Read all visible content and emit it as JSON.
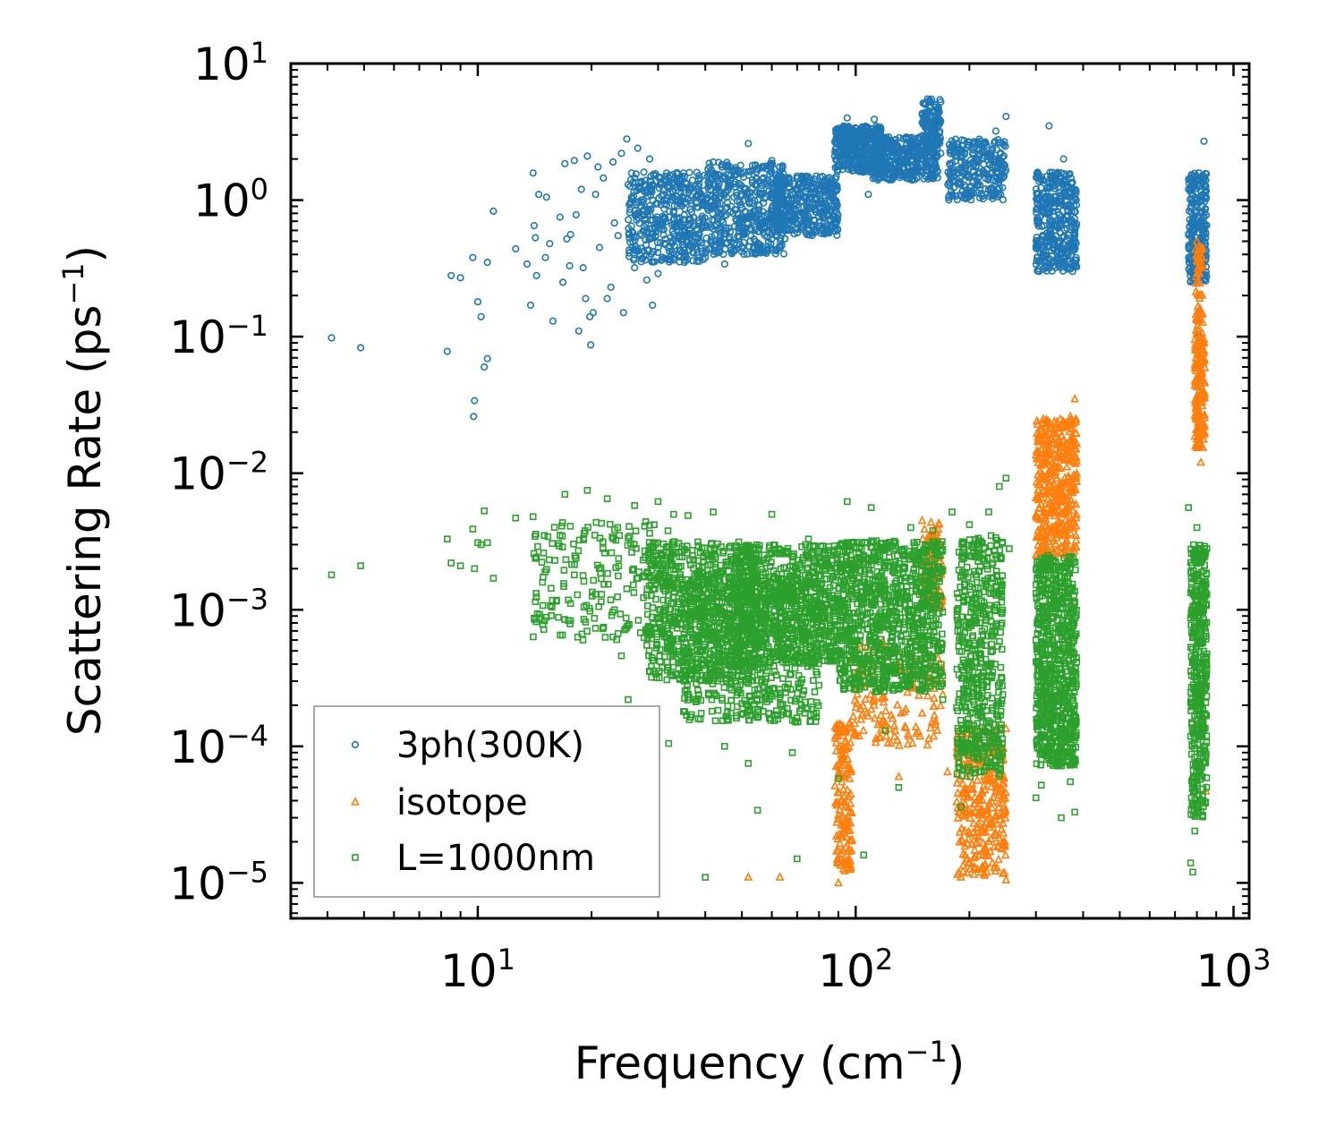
{
  "chart_data": {
    "type": "scatter",
    "xscale": "log",
    "yscale": "log",
    "xlim": [
      3.2,
      1100
    ],
    "ylim": [
      5.5e-06,
      10
    ],
    "xlabel": {
      "base": "Frequency (cm",
      "sup": "−1",
      "tail": ")"
    },
    "ylabel": {
      "base": "Scattering Rate (ps",
      "sup": "−1",
      "tail": ")"
    },
    "x_ticks": [
      {
        "value": 10,
        "base": "10",
        "exp": "1"
      },
      {
        "value": 100,
        "base": "10",
        "exp": "2"
      },
      {
        "value": 1000,
        "base": "10",
        "exp": "3"
      }
    ],
    "y_ticks": [
      {
        "value": 10,
        "base": "10",
        "exp": "1"
      },
      {
        "value": 1,
        "base": "10",
        "exp": "0"
      },
      {
        "value": 0.1,
        "base": "10",
        "exp": "−1"
      },
      {
        "value": 0.01,
        "base": "10",
        "exp": "−2"
      },
      {
        "value": 0.001,
        "base": "10",
        "exp": "−3"
      },
      {
        "value": 0.0001,
        "base": "10",
        "exp": "−4"
      },
      {
        "value": 1e-05,
        "base": "10",
        "exp": "−5"
      }
    ],
    "legend": {
      "placement": "lower-left"
    },
    "series": [
      {
        "name": "3ph(300K)",
        "marker": "circle",
        "color": "#1f77b4",
        "points": [
          [
            4.1,
            0.098
          ],
          [
            4.9,
            0.083
          ],
          [
            8.3,
            0.078
          ],
          [
            8.5,
            0.28
          ],
          [
            9.0,
            0.27
          ],
          [
            9.7,
            0.38
          ],
          [
            9.8,
            0.034
          ],
          [
            9.75,
            0.026
          ],
          [
            10.0,
            0.18
          ],
          [
            10.2,
            0.14
          ],
          [
            10.4,
            0.06
          ],
          [
            10.6,
            0.069
          ],
          [
            10.6,
            0.35
          ],
          [
            11.0,
            0.83
          ],
          [
            12.6,
            0.44
          ],
          [
            13.5,
            0.34
          ],
          [
            13.8,
            0.17
          ],
          [
            14.0,
            1.58
          ],
          [
            14.1,
            0.65
          ],
          [
            14.2,
            0.53
          ],
          [
            14.3,
            0.28
          ],
          [
            14.5,
            1.1
          ],
          [
            15.1,
            0.38
          ],
          [
            15.2,
            1.05
          ],
          [
            15.5,
            0.48
          ],
          [
            15.8,
            0.13
          ],
          [
            16.5,
            0.75
          ],
          [
            16.8,
            0.25
          ],
          [
            17.0,
            1.85
          ],
          [
            17.2,
            0.52
          ],
          [
            17.5,
            0.33
          ],
          [
            17.6,
            0.56
          ],
          [
            18.0,
            1.95
          ],
          [
            18.2,
            0.78
          ],
          [
            18.5,
            0.11
          ],
          [
            18.8,
            1.2
          ],
          [
            19.0,
            0.32
          ],
          [
            19.3,
            0.19
          ],
          [
            19.5,
            2.1
          ],
          [
            19.8,
            0.14
          ],
          [
            19.9,
            0.087
          ],
          [
            20.2,
            0.15
          ],
          [
            20.5,
            1.1
          ],
          [
            20.8,
            1.75
          ],
          [
            21.0,
            0.45
          ],
          [
            21.5,
            1.45
          ],
          [
            22.0,
            0.19
          ],
          [
            22.5,
            0.23
          ],
          [
            22.8,
            1.9
          ],
          [
            23.0,
            0.68
          ],
          [
            23.5,
            0.55
          ],
          [
            24.0,
            2.2
          ],
          [
            24.3,
            0.15
          ],
          [
            24.8,
            2.8
          ],
          [
            25.0,
            1.3
          ],
          [
            25.5,
            1.05
          ],
          [
            26.0,
            0.32
          ],
          [
            26.5,
            2.4
          ],
          [
            27.0,
            0.9
          ],
          [
            27.5,
            1.6
          ],
          [
            28.0,
            0.26
          ],
          [
            28.5,
            2.0
          ],
          [
            29.0,
            0.17
          ],
          [
            29.5,
            0.55
          ],
          [
            30.0,
            0.29
          ],
          [
            31.0,
            1.1
          ],
          [
            33.0,
            0.72
          ],
          [
            35.0,
            0.45
          ],
          [
            37.0,
            1.4
          ],
          [
            40.0,
            0.38
          ],
          [
            42.0,
            1.9
          ],
          [
            45.0,
            0.34
          ],
          [
            48.0,
            1.25
          ],
          [
            52.0,
            2.6
          ],
          [
            55.0,
            0.45
          ],
          [
            60.0,
            1.95
          ],
          [
            65.0,
            0.52
          ],
          [
            70.0,
            1.5
          ],
          [
            75.0,
            0.62
          ],
          [
            80.0,
            0.95
          ],
          [
            88.0,
            2.1
          ],
          [
            95.0,
            4.0
          ],
          [
            100.0,
            2.4
          ],
          [
            108.0,
            1.1
          ],
          [
            112.0,
            3.9
          ],
          [
            120.0,
            1.75
          ],
          [
            130.0,
            2.4
          ],
          [
            140.0,
            1.6
          ],
          [
            150.0,
            2.3
          ],
          [
            155.0,
            5.5
          ],
          [
            160.0,
            3.1
          ],
          [
            168.0,
            2.2
          ],
          [
            178.0,
            1.8
          ],
          [
            185.0,
            2.6
          ],
          [
            195.0,
            1.25
          ],
          [
            205.0,
            1.6
          ],
          [
            215.0,
            1.1
          ],
          [
            225.0,
            2.2
          ],
          [
            235.0,
            3.2
          ],
          [
            245.0,
            2.6
          ],
          [
            250.0,
            4.1
          ],
          [
            305.0,
            1.0
          ],
          [
            315.0,
            0.65
          ],
          [
            325.0,
            3.5
          ],
          [
            335.0,
            0.9
          ],
          [
            345.0,
            0.5
          ],
          [
            355.0,
            2.0
          ],
          [
            365.0,
            0.4
          ],
          [
            375.0,
            0.3
          ],
          [
            380.0,
            0.55
          ],
          [
            760.0,
            1.2
          ],
          [
            775.0,
            0.6
          ],
          [
            790.0,
            0.28
          ],
          [
            800.0,
            0.25
          ],
          [
            812.0,
            0.1
          ],
          [
            825.0,
            1.0
          ],
          [
            835.0,
            2.7
          ],
          [
            845.0,
            1.4
          ]
        ],
        "bands": [
          {
            "x": [
              25,
              40
            ],
            "y": [
              0.35,
              1.6
            ],
            "n": 420
          },
          {
            "x": [
              40,
              65
            ],
            "y": [
              0.4,
              1.9
            ],
            "n": 480
          },
          {
            "x": [
              60,
              90
            ],
            "y": [
              0.55,
              1.5
            ],
            "n": 380
          },
          {
            "x": [
              88,
              118
            ],
            "y": [
              1.6,
              3.5
            ],
            "n": 360
          },
          {
            "x": [
              110,
              165
            ],
            "y": [
              1.4,
              2.9
            ],
            "n": 420
          },
          {
            "x": [
              150,
              168
            ],
            "y": [
              2.5,
              5.5
            ],
            "n": 120
          },
          {
            "x": [
              175,
              250
            ],
            "y": [
              1.0,
              2.8
            ],
            "n": 260
          },
          {
            "x": [
              300,
              385
            ],
            "y": [
              0.3,
              1.6
            ],
            "n": 380
          },
          {
            "x": [
              760,
              850
            ],
            "y": [
              0.25,
              1.6
            ],
            "n": 240
          }
        ]
      },
      {
        "name": "isotope",
        "marker": "triangle",
        "color": "#ff7f0e",
        "points": [
          [
            52.0,
            1.1e-05
          ],
          [
            63.0,
            1.1e-05
          ],
          [
            90.0,
            1e-05
          ],
          [
            95.0,
            2.5e-05
          ],
          [
            100.0,
            0.00012
          ],
          [
            110.0,
            0.0003
          ],
          [
            130.0,
            6e-05
          ],
          [
            150.0,
            0.0045
          ],
          [
            160.0,
            0.0027
          ],
          [
            170.0,
            0.00024
          ],
          [
            175.0,
            6.5e-05
          ],
          [
            190.0,
            1.1e-05
          ],
          [
            230.0,
            1.4e-05
          ],
          [
            250.0,
            1.05e-05
          ],
          [
            300.0,
            0.0025
          ],
          [
            310.0,
            0.004
          ],
          [
            340.0,
            0.022
          ],
          [
            370.0,
            0.026
          ],
          [
            380.0,
            0.035
          ],
          [
            800.0,
            0.5
          ],
          [
            810.0,
            0.2
          ],
          [
            820.0,
            0.012
          ],
          [
            845.0,
            4.7e-05
          ]
        ],
        "bands": [
          {
            "x": [
              88,
              98
            ],
            "y": [
              1.2e-05,
              0.00015
            ],
            "n": 150
          },
          {
            "x": [
              98,
              170
            ],
            "y": [
              0.0001,
              0.0006
            ],
            "n": 160
          },
          {
            "x": [
              150,
              170
            ],
            "y": [
              0.001,
              0.0045
            ],
            "n": 110
          },
          {
            "x": [
              185,
              250
            ],
            "y": [
              1.1e-05,
              0.00014
            ],
            "n": 300
          },
          {
            "x": [
              300,
              385
            ],
            "y": [
              0.0025,
              0.025
            ],
            "n": 420
          },
          {
            "x": [
              790,
              840
            ],
            "y": [
              0.015,
              0.1
            ],
            "n": 170
          },
          {
            "x": [
              795,
              830
            ],
            "y": [
              0.1,
              0.45
            ],
            "n": 60
          }
        ]
      },
      {
        "name": "L=1000nm",
        "marker": "square",
        "color": "#2ca02c",
        "points": [
          [
            4.1,
            0.0018
          ],
          [
            4.9,
            0.0021
          ],
          [
            8.3,
            0.0033
          ],
          [
            8.5,
            0.0022
          ],
          [
            9.0,
            0.0021
          ],
          [
            9.7,
            0.0039
          ],
          [
            9.8,
            0.002
          ],
          [
            10.0,
            0.0031
          ],
          [
            10.2,
            0.003
          ],
          [
            10.4,
            0.0053
          ],
          [
            10.6,
            0.0031
          ],
          [
            11.0,
            0.0017
          ],
          [
            12.6,
            0.0047
          ],
          [
            14.0,
            0.0048
          ],
          [
            15.0,
            0.0035
          ],
          [
            16.0,
            0.0023
          ],
          [
            17.0,
            0.007
          ],
          [
            18.0,
            0.0018
          ],
          [
            19.5,
            0.0075
          ],
          [
            20.5,
            0.0013
          ],
          [
            22.0,
            0.0065
          ],
          [
            23.0,
            0.001
          ],
          [
            24.0,
            0.00046
          ],
          [
            25.0,
            0.00022
          ],
          [
            26.0,
            0.0058
          ],
          [
            28.0,
            0.00055
          ],
          [
            30.0,
            0.0062
          ],
          [
            32.0,
            0.000105
          ],
          [
            33.0,
            0.005
          ],
          [
            36.0,
            0.0049
          ],
          [
            40.0,
            1.1e-05
          ],
          [
            42.0,
            0.0052
          ],
          [
            45.0,
            0.0001
          ],
          [
            48.0,
            0.0003
          ],
          [
            52.0,
            7.5e-05
          ],
          [
            55.0,
            3.4e-05
          ],
          [
            60.0,
            0.005
          ],
          [
            68.0,
            9e-05
          ],
          [
            70.0,
            1.5e-05
          ],
          [
            75.0,
            0.0033
          ],
          [
            80.0,
            0.00028
          ],
          [
            90.0,
            5.8e-05
          ],
          [
            95.0,
            0.0062
          ],
          [
            100.0,
            0.00026
          ],
          [
            105.0,
            1.6e-05
          ],
          [
            110.0,
            0.0056
          ],
          [
            120.0,
            0.00013
          ],
          [
            130.0,
            5e-05
          ],
          [
            140.0,
            0.004
          ],
          [
            150.0,
            0.0003
          ],
          [
            160.0,
            0.0038
          ],
          [
            170.0,
            0.00022
          ],
          [
            180.0,
            0.0052
          ],
          [
            190.0,
            3.6e-05
          ],
          [
            200.0,
            0.0042
          ],
          [
            210.0,
            0.00013
          ],
          [
            225.0,
            0.0052
          ],
          [
            240.0,
            0.008
          ],
          [
            250.0,
            0.0092
          ],
          [
            255.0,
            0.0028
          ],
          [
            300.0,
            4.2e-05
          ],
          [
            310.0,
            5.2e-05
          ],
          [
            330.0,
            0.000105
          ],
          [
            350.0,
            3e-05
          ],
          [
            370.0,
            5.5e-05
          ],
          [
            380.0,
            3.3e-05
          ],
          [
            760.0,
            0.0056
          ],
          [
            770.0,
            1.4e-05
          ],
          [
            780.0,
            1.2e-05
          ],
          [
            790.0,
            2.4e-05
          ],
          [
            800.0,
            0.004
          ],
          [
            820.0,
            0.00022
          ],
          [
            840.0,
            0.0001
          ]
        ],
        "bands": [
          {
            "x": [
              14,
              33
            ],
            "y": [
              0.0006,
              0.0045
            ],
            "n": 200
          },
          {
            "x": [
              28,
              55
            ],
            "y": [
              0.0003,
              0.0032
            ],
            "n": 700
          },
          {
            "x": [
              35,
              80
            ],
            "y": [
              0.00015,
              0.0018
            ],
            "n": 600
          },
          {
            "x": [
              48,
              90
            ],
            "y": [
              0.0004,
              0.003
            ],
            "n": 700
          },
          {
            "x": [
              90,
              170
            ],
            "y": [
              0.00025,
              0.0032
            ],
            "n": 1000
          },
          {
            "x": [
              185,
              245
            ],
            "y": [
              6e-05,
              0.0035
            ],
            "n": 520
          },
          {
            "x": [
              300,
              385
            ],
            "y": [
              7e-05,
              0.0025
            ],
            "n": 750
          },
          {
            "x": [
              770,
              850
            ],
            "y": [
              3e-05,
              0.003
            ],
            "n": 420
          }
        ]
      }
    ]
  }
}
